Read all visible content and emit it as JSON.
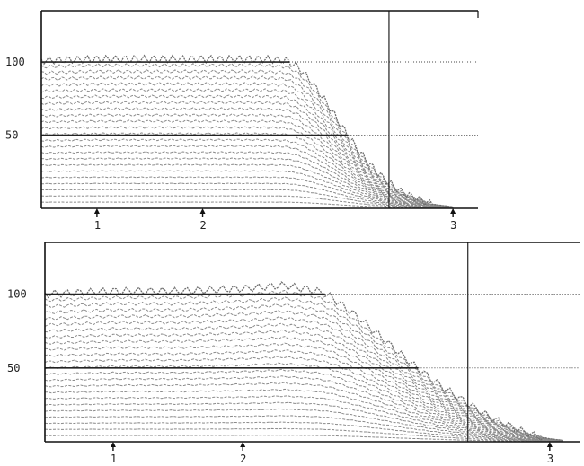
{
  "chart_data": [
    {
      "type": "area",
      "title": "",
      "xlabel": "",
      "ylabel": "",
      "ylim": [
        0,
        135
      ],
      "yticks": [
        {
          "value": 100,
          "label": "100"
        },
        {
          "value": 50,
          "label": "50"
        }
      ],
      "markers": [
        {
          "label": "1",
          "x": 0.2
        },
        {
          "label": "2",
          "x": 0.58
        },
        {
          "label": "3",
          "x": 1.48
        }
      ],
      "vertical_line_x": 1.25,
      "xlim": [
        0,
        1.57
      ],
      "curve": {
        "x": [
          0.0,
          0.2,
          0.4,
          0.6,
          0.8,
          0.88,
          0.92,
          0.96,
          1.0,
          1.04,
          1.08,
          1.12,
          1.16,
          1.2,
          1.24,
          1.28,
          1.32,
          1.36,
          1.4,
          1.44,
          1.48
        ],
        "y": [
          101,
          102,
          102,
          102,
          102,
          101,
          97,
          89,
          79,
          68,
          56,
          45,
          35,
          26,
          19,
          13,
          9,
          6,
          3,
          2,
          1
        ]
      },
      "horizontal_lines": [
        100,
        50
      ],
      "series_color": "#8a8a8a"
    },
    {
      "type": "area",
      "title": "",
      "xlabel": "",
      "ylabel": "",
      "ylim": [
        0,
        135
      ],
      "yticks": [
        {
          "value": 100,
          "label": "100"
        },
        {
          "value": 50,
          "label": "50"
        }
      ],
      "markers": [
        {
          "label": "1",
          "x": 0.2
        },
        {
          "label": "2",
          "x": 0.58
        },
        {
          "label": "3",
          "x": 1.48
        }
      ],
      "vertical_line_x": 1.24,
      "xlim": [
        0,
        1.57
      ],
      "curve": {
        "x": [
          0.0,
          0.2,
          0.4,
          0.6,
          0.7,
          0.8,
          0.84,
          0.88,
          0.92,
          0.96,
          1.0,
          1.04,
          1.08,
          1.12,
          1.16,
          1.2,
          1.24,
          1.28,
          1.32,
          1.36,
          1.4,
          1.44,
          1.48,
          1.52
        ],
        "y": [
          100,
          102,
          102,
          104,
          106,
          102,
          98,
          91,
          84,
          76,
          68,
          60,
          52,
          45,
          38,
          32,
          26,
          20,
          15,
          11,
          7,
          4,
          2,
          1
        ]
      },
      "horizontal_lines": [
        100,
        50
      ],
      "series_color": "#8a8a8a"
    }
  ]
}
